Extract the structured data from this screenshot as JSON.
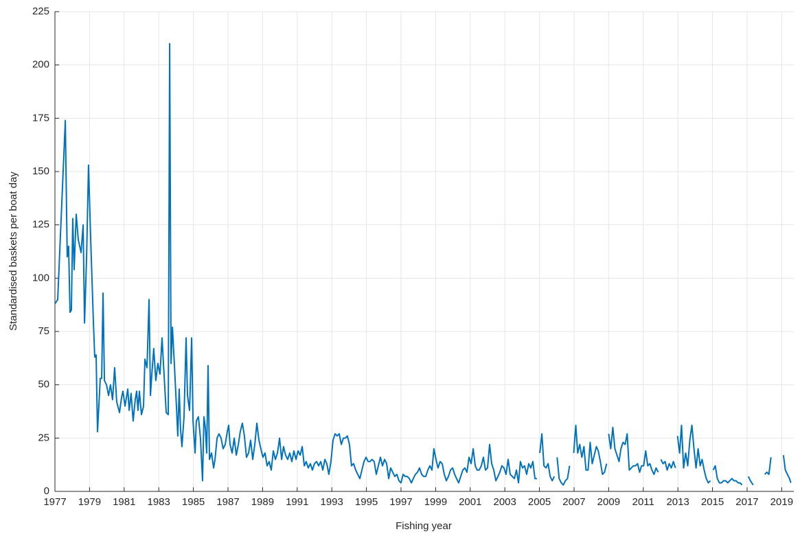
{
  "chart_data": {
    "type": "line",
    "xlabel": "Fishing year",
    "ylabel": "Standardised baskets per boat day",
    "color": "#0072bd",
    "grid": true,
    "xlim": [
      1977,
      2019.7
    ],
    "ylim": [
      0,
      225
    ],
    "xticks": [
      1977,
      1979,
      1981,
      1983,
      1985,
      1987,
      1989,
      1991,
      1993,
      1995,
      1997,
      1999,
      2001,
      2003,
      2005,
      2007,
      2009,
      2011,
      2013,
      2015,
      2017,
      2019
    ],
    "yticks": [
      0,
      25,
      50,
      75,
      100,
      125,
      150,
      175,
      200,
      225
    ],
    "x": [
      1977.0,
      1977.16,
      1977.6,
      1977.71,
      1977.79,
      1977.87,
      1977.95,
      1978.03,
      1978.11,
      1978.23,
      1978.35,
      1978.51,
      1978.63,
      1978.71,
      1978.83,
      1978.94,
      1979.06,
      1979.22,
      1979.3,
      1979.38,
      1979.46,
      1979.62,
      1979.7,
      1979.78,
      1979.86,
      1979.98,
      1980.1,
      1980.21,
      1980.33,
      1980.45,
      1980.57,
      1980.73,
      1980.85,
      1980.93,
      1981.05,
      1981.21,
      1981.29,
      1981.4,
      1981.52,
      1981.64,
      1981.72,
      1981.8,
      1981.88,
      1982.0,
      1982.12,
      1982.2,
      1982.32,
      1982.44,
      1982.52,
      1982.6,
      1982.71,
      1982.83,
      1982.95,
      1983.07,
      1983.19,
      1983.27,
      1983.43,
      1983.55,
      1983.63,
      1983.71,
      1983.79,
      1983.9,
      1984.02,
      1984.1,
      1984.18,
      1984.26,
      1984.34,
      1984.46,
      1984.58,
      1984.66,
      1984.78,
      1984.9,
      1984.98,
      1985.1,
      1985.17,
      1985.29,
      1985.41,
      1985.53,
      1985.61,
      1985.69,
      1985.77,
      1985.85,
      1985.93,
      1986.05,
      1986.17,
      1986.25,
      1986.37,
      1986.48,
      1986.6,
      1986.72,
      1986.84,
      1986.96,
      1987.04,
      1987.12,
      1987.24,
      1987.36,
      1987.48,
      1987.6,
      1987.71,
      1987.83,
      1987.95,
      1988.07,
      1988.19,
      1988.31,
      1988.43,
      1988.55,
      1988.67,
      1988.79,
      1988.9,
      1989.02,
      1989.14,
      1989.26,
      1989.38,
      1989.5,
      1989.62,
      1989.74,
      1989.86,
      1989.98,
      1990.1,
      1990.21,
      1990.33,
      1990.45,
      1990.57,
      1990.69,
      1990.81,
      1990.93,
      1991.05,
      1991.17,
      1991.29,
      1991.41,
      1991.52,
      1991.64,
      1991.76,
      1991.88,
      1992.0,
      1992.12,
      1992.24,
      1992.36,
      1992.48,
      1992.6,
      1992.71,
      1992.83,
      1992.95,
      1993.07,
      1993.19,
      1993.31,
      1993.43,
      1993.55,
      1993.67,
      1993.79,
      1993.9,
      1994.02,
      1994.14,
      1994.26,
      1994.38,
      1994.5,
      1994.62,
      1994.74,
      1994.86,
      1994.98,
      1995.1,
      1995.21,
      1995.33,
      1995.45,
      1995.57,
      1995.69,
      1995.81,
      1995.93,
      1996.05,
      1996.17,
      1996.29,
      1996.4,
      1996.52,
      1996.64,
      1996.76,
      1996.88,
      1997.0,
      1997.12,
      1997.24,
      1997.36,
      1997.48,
      1997.6,
      1997.71,
      1997.83,
      1997.95,
      1998.07,
      1998.19,
      1998.31,
      1998.43,
      1998.55,
      1998.67,
      1998.79,
      1998.9,
      1999.02,
      1999.14,
      1999.26,
      1999.38,
      1999.5,
      1999.62,
      1999.74,
      1999.86,
      1999.98,
      2000.1,
      2000.21,
      2000.33,
      2000.45,
      2000.57,
      2000.69,
      2000.81,
      2000.93,
      2001.05,
      2001.17,
      2001.29,
      2001.4,
      2001.52,
      2001.64,
      2001.76,
      2001.88,
      2002.0,
      2002.12,
      2002.24,
      2002.36,
      2002.48,
      2002.6,
      2002.71,
      2002.83,
      2002.95,
      2003.07,
      2003.19,
      2003.31,
      2003.43,
      2003.55,
      2003.67,
      2003.79,
      2003.9,
      2004.02,
      2004.14,
      2004.26,
      2004.38,
      2004.5,
      2004.62,
      2004.74,
      2004.86,
      2004.94,
      2005.02,
      2005.14,
      2005.26,
      2005.38,
      2005.5,
      2005.62,
      2005.74,
      2005.86,
      2005.94,
      2006.02,
      2006.14,
      2006.26,
      2006.38,
      2006.5,
      2006.62,
      2006.74,
      2006.86,
      2006.98,
      2007.1,
      2007.21,
      2007.33,
      2007.45,
      2007.57,
      2007.69,
      2007.81,
      2007.93,
      2008.05,
      2008.17,
      2008.29,
      2008.4,
      2008.52,
      2008.64,
      2008.76,
      2008.88,
      2008.94,
      2009.0,
      2009.12,
      2009.24,
      2009.36,
      2009.48,
      2009.6,
      2009.71,
      2009.83,
      2009.95,
      2010.07,
      2010.19,
      2010.31,
      2010.43,
      2010.55,
      2010.67,
      2010.79,
      2010.9,
      2011.02,
      2011.14,
      2011.26,
      2011.38,
      2011.5,
      2011.62,
      2011.74,
      2011.86,
      2011.94,
      2012.02,
      2012.14,
      2012.26,
      2012.38,
      2012.5,
      2012.62,
      2012.74,
      2012.86,
      2012.92,
      2012.98,
      2013.1,
      2013.21,
      2013.33,
      2013.45,
      2013.57,
      2013.69,
      2013.81,
      2013.93,
      2014.05,
      2014.17,
      2014.29,
      2014.4,
      2014.52,
      2014.64,
      2014.76,
      2014.88,
      2014.96,
      2015.04,
      2015.16,
      2015.28,
      2015.4,
      2015.52,
      2015.64,
      2015.76,
      2015.88,
      2016.0,
      2016.12,
      2016.24,
      2016.36,
      2016.48,
      2016.6,
      2016.71,
      2016.89,
      2017.07,
      2017.19,
      2017.35,
      2017.68,
      2018.02,
      2018.14,
      2018.26,
      2018.38,
      2018.74,
      2019.1,
      2019.21,
      2019.33,
      2019.45,
      2019.53
    ],
    "values": [
      88,
      90,
      174,
      110,
      115,
      84,
      85,
      128,
      104,
      130,
      118,
      112,
      125,
      79,
      110,
      153,
      120,
      80,
      63,
      64,
      28,
      53,
      53,
      93,
      52,
      50,
      45,
      50,
      43,
      58,
      42,
      37,
      44,
      47,
      40,
      48,
      38,
      46,
      33,
      43,
      47,
      38,
      47,
      36,
      40,
      62,
      58,
      90,
      45,
      55,
      67,
      52,
      60,
      55,
      72,
      60,
      37,
      36,
      210,
      60,
      77,
      60,
      40,
      26,
      48,
      29,
      21,
      35,
      72,
      45,
      38,
      72,
      33,
      18,
      33,
      35,
      25,
      5,
      35,
      30,
      18,
      59,
      15,
      18,
      11,
      15,
      25,
      27,
      25,
      20,
      22,
      28,
      31,
      22,
      18,
      25,
      17,
      22,
      28,
      32,
      26,
      16,
      18,
      24,
      15,
      22,
      32,
      24,
      20,
      16,
      18,
      12,
      14,
      10,
      19,
      15,
      18,
      25,
      15,
      21,
      17,
      15,
      18,
      14,
      19,
      15,
      19,
      17,
      21,
      12,
      14,
      11,
      13,
      10,
      13,
      14,
      12,
      14,
      10,
      15,
      13,
      8,
      14,
      24,
      27,
      26,
      27,
      22,
      25,
      25,
      26,
      22,
      12,
      13,
      10,
      8,
      6,
      10,
      14,
      16,
      14,
      14,
      15,
      14,
      8,
      12,
      16,
      12,
      15,
      13,
      6,
      11,
      9,
      7,
      8,
      5,
      4,
      8,
      7,
      7,
      6,
      4,
      6,
      8,
      9,
      11,
      8,
      7,
      7,
      10,
      12,
      10,
      20,
      15,
      11,
      14,
      13,
      8,
      5,
      7,
      10,
      11,
      8,
      6,
      4,
      7,
      10,
      11,
      9,
      16,
      13,
      20,
      12,
      10,
      10,
      12,
      16,
      10,
      11,
      22,
      13,
      10,
      5,
      7,
      9,
      12,
      11,
      8,
      15,
      8,
      7,
      6,
      10,
      4,
      14,
      11,
      12,
      8,
      13,
      11,
      14,
      6,
      6,
      null,
      18,
      27,
      12,
      11,
      13,
      7,
      5,
      7,
      null,
      16,
      6,
      4,
      3,
      5,
      6,
      12,
      null,
      18,
      31,
      18,
      22,
      16,
      21,
      10,
      10,
      23,
      13,
      17,
      21,
      19,
      14,
      8,
      9,
      13,
      null,
      27,
      20,
      30,
      20,
      17,
      14,
      20,
      23,
      22,
      27,
      10,
      11,
      12,
      12,
      13,
      9,
      12,
      12,
      19,
      12,
      13,
      10,
      8,
      11,
      9,
      null,
      15,
      13,
      14,
      10,
      13,
      11,
      14,
      11,
      null,
      26,
      18,
      31,
      11,
      18,
      12,
      24,
      31,
      20,
      11,
      20,
      12,
      15,
      10,
      6,
      4,
      5,
      null,
      10,
      12,
      6,
      4,
      4,
      5,
      5,
      4,
      5,
      6,
      5,
      5,
      4,
      4,
      3,
      null,
      7,
      5,
      3,
      null,
      8,
      9,
      8,
      16,
      null,
      17,
      10,
      8,
      6,
      4
    ]
  }
}
